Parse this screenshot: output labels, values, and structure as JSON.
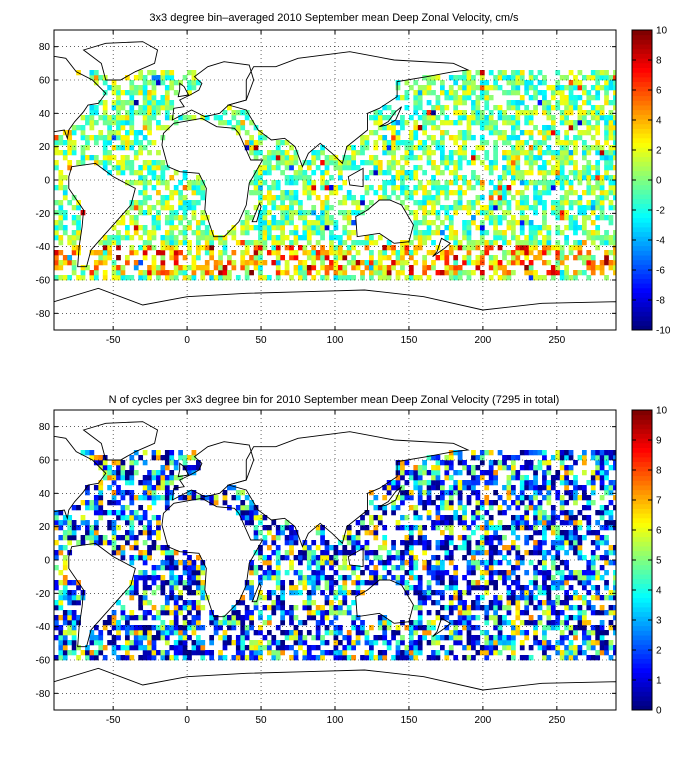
{
  "chart_data": [
    {
      "type": "heatmap",
      "title": "3x3 degree bin–averaged 2010 September mean Deep Zonal Velocity, cm/s",
      "xlabel": "",
      "ylabel": "",
      "xlim": [
        -90,
        290
      ],
      "ylim": [
        -90,
        90
      ],
      "x_ticks": [
        -50,
        0,
        50,
        100,
        150,
        200,
        250
      ],
      "y_ticks": [
        80,
        60,
        40,
        20,
        0,
        -20,
        -40,
        -60,
        -80
      ],
      "grid": true,
      "grid_style": "dotted",
      "colorbar": {
        "range": [
          -10,
          10
        ],
        "ticks": [
          10,
          8,
          6,
          4,
          2,
          0,
          -2,
          -4,
          -6,
          -8,
          -10
        ],
        "colormap": "jet",
        "position": "right"
      },
      "bin_size_deg": 3,
      "notes_pattern": "dense bins over oceans; strong positive eastward band near -45 to -55 latitude (Antarctic Circumpolar Current); mostly near-zero values elsewhere"
    },
    {
      "type": "heatmap",
      "title": "N of cycles per 3x3 degree bin for 2010 September mean Deep Zonal Velocity (7295 in total)",
      "xlabel": "",
      "ylabel": "",
      "xlim": [
        -90,
        290
      ],
      "ylim": [
        -90,
        90
      ],
      "x_ticks": [
        -50,
        0,
        50,
        100,
        150,
        200,
        250
      ],
      "y_ticks": [
        80,
        60,
        40,
        20,
        0,
        -20,
        -40,
        -60,
        -80
      ],
      "grid": true,
      "grid_style": "dotted",
      "colorbar": {
        "range": [
          0,
          10
        ],
        "ticks": [
          10,
          9,
          8,
          7,
          6,
          5,
          4,
          3,
          2,
          1,
          0
        ],
        "colormap": "jet",
        "position": "right"
      },
      "bin_size_deg": 3,
      "total_cycles": 7295
    }
  ],
  "colors": {
    "jet_low": "#00008f",
    "jet_mid": "#80ff80",
    "jet_high": "#800000",
    "coast": "#000000"
  }
}
